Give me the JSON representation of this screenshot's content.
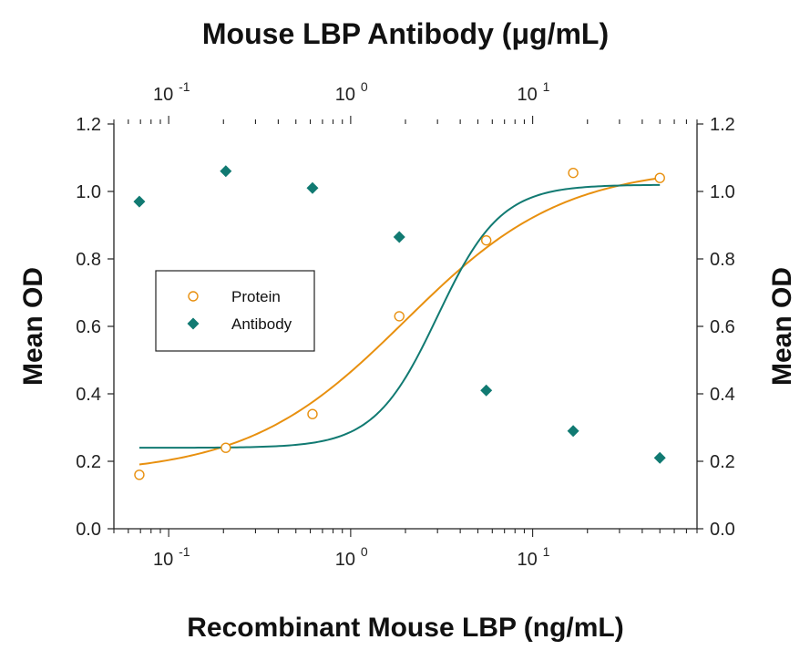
{
  "chart_data": {
    "type": "scatter",
    "title": "Mouse LBP Antibody (μg/mL)",
    "xlabel": "Recombinant Mouse LBP (ng/mL)",
    "ylabel": "Mean OD",
    "ylabel_right": "Mean OD",
    "x_scale": "log",
    "xlim": [
      0.05,
      80
    ],
    "ylim": [
      0.0,
      1.2
    ],
    "y_ticks": [
      "0.0",
      "0.2",
      "0.4",
      "0.6",
      "0.8",
      "1.0",
      "1.2"
    ],
    "x_ticks": [
      {
        "value": 0.1,
        "base": "10",
        "exp": "-1"
      },
      {
        "value": 1,
        "base": "10",
        "exp": "0"
      },
      {
        "value": 10,
        "base": "10",
        "exp": "1"
      }
    ],
    "legend_position": "middle-left",
    "series": [
      {
        "name": "Protein",
        "marker": "open-circle",
        "color": "#e8900f",
        "x": [
          0.069,
          0.206,
          0.617,
          1.85,
          5.56,
          16.7,
          50
        ],
        "y": [
          0.16,
          0.24,
          0.34,
          0.63,
          0.855,
          1.055,
          1.04
        ],
        "fit": {
          "bottom": 0.16,
          "top": 1.075,
          "ec50": 2.0,
          "hill": 1.0
        }
      },
      {
        "name": "Antibody",
        "marker": "filled-diamond",
        "color": "#117a72",
        "x": [
          0.069,
          0.206,
          0.617,
          1.85,
          5.56,
          16.7,
          50
        ],
        "y": [
          0.97,
          1.06,
          1.01,
          0.865,
          0.41,
          0.29,
          0.21
        ],
        "fit": {
          "bottom": 0.24,
          "top": 1.02,
          "ec50": 3.0,
          "hill": 2.5
        }
      }
    ]
  }
}
